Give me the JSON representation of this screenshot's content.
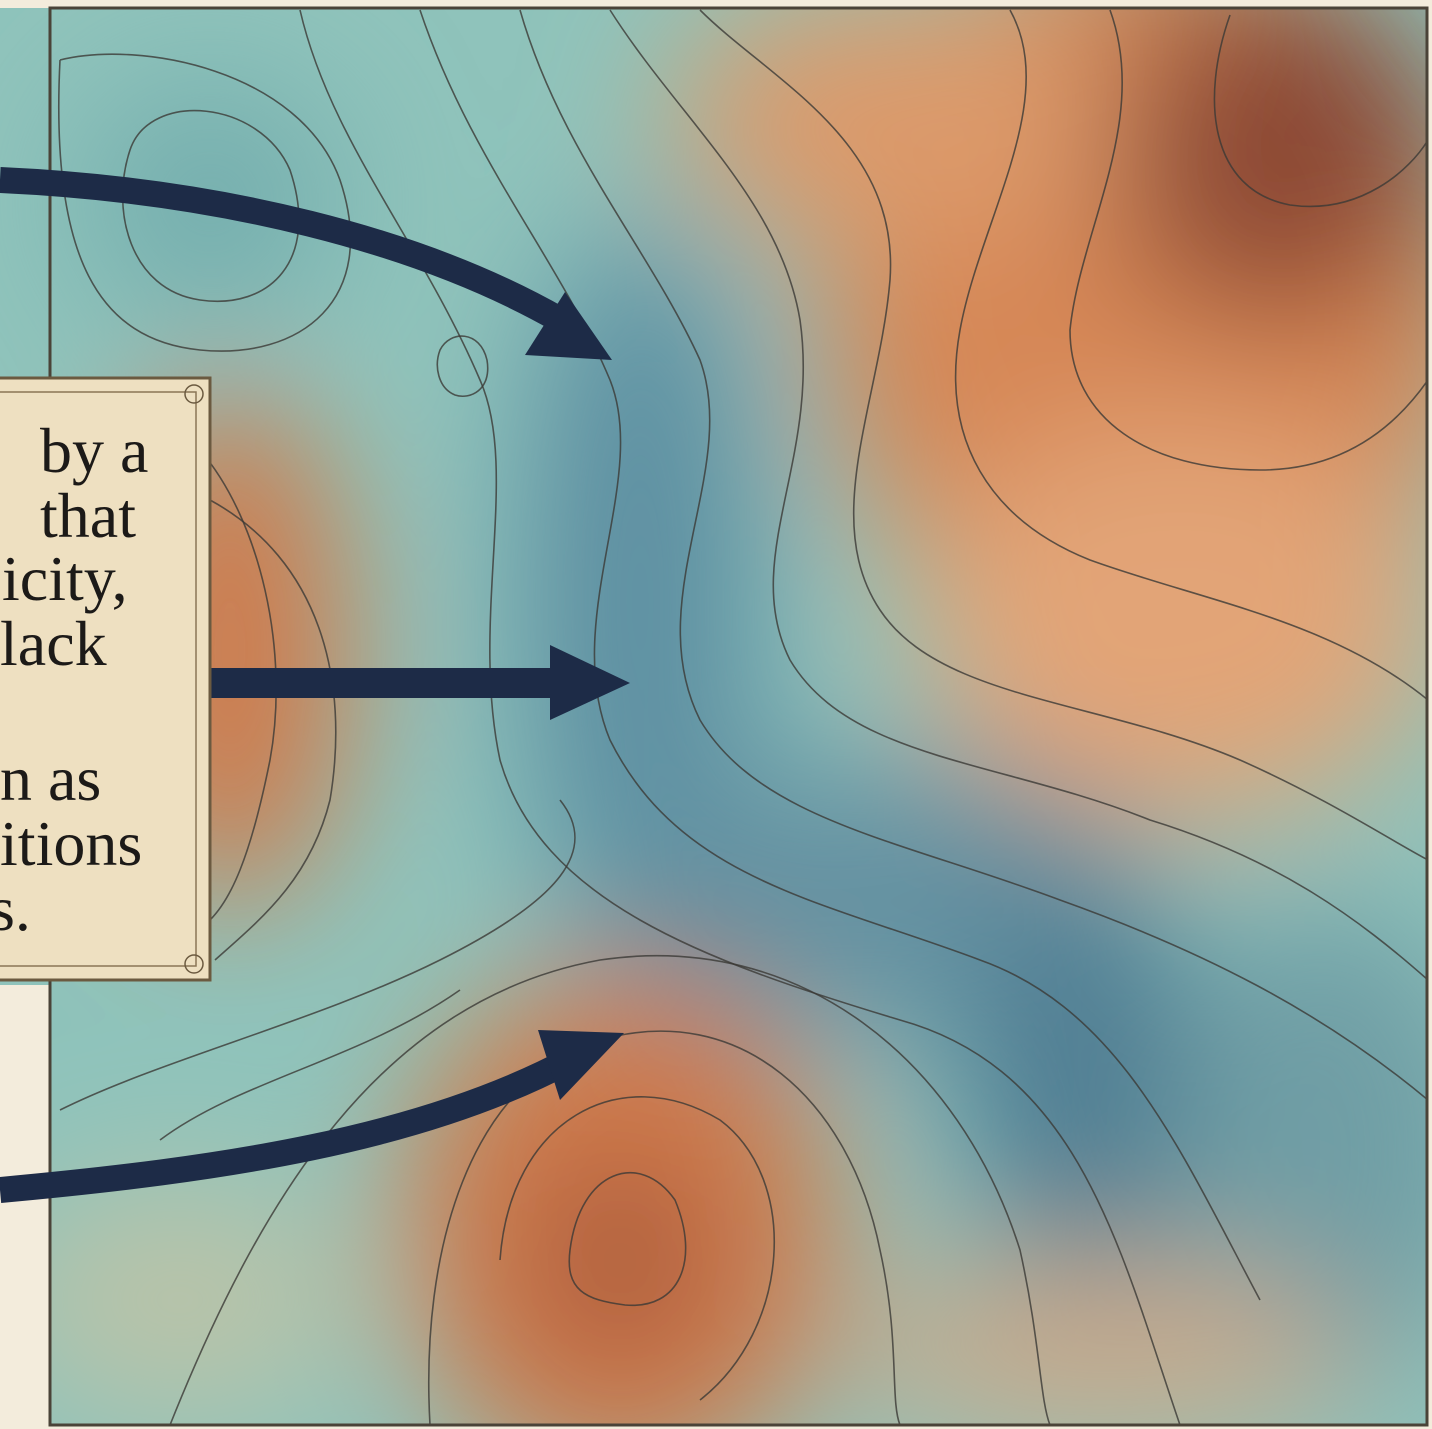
{
  "note": {
    "lines": [
      "by a",
      "that",
      "icity,",
      "lack",
      "n as",
      "itions",
      "s."
    ]
  }
}
